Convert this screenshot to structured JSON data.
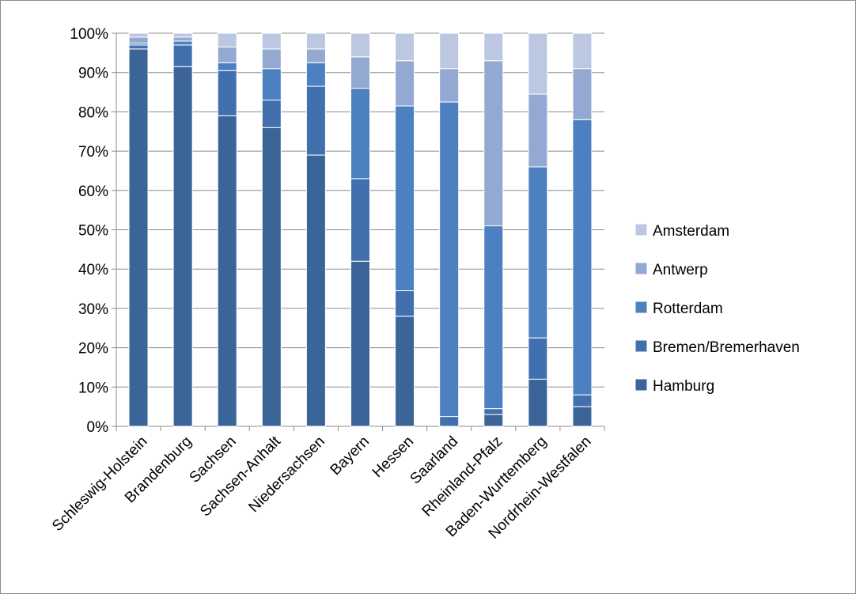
{
  "chart_data": {
    "type": "bar",
    "stacked": true,
    "percent_stacked": true,
    "categories": [
      "Schleswig-Holstein",
      "Brandenburg",
      "Sachsen",
      "Sachsen-Anhalt",
      "Niedersachsen",
      "Bayern",
      "Hessen",
      "Saarland",
      "Rheinland-Pfalz",
      "Baden-Wurttemberg",
      "Nordrhein-Westfalen"
    ],
    "series": [
      {
        "name": "Hamburg",
        "color": "#3b6498",
        "values": [
          96,
          91.5,
          79,
          76,
          69,
          42,
          28,
          0,
          3,
          12,
          5
        ]
      },
      {
        "name": "Bremen/Bremerhaven",
        "color": "#4270ae",
        "values": [
          1,
          5.5,
          11.5,
          7,
          17.5,
          21,
          6.5,
          2.5,
          1.5,
          10.5,
          3
        ]
      },
      {
        "name": "Rotterdam",
        "color": "#4c80c0",
        "values": [
          0.5,
          1,
          2,
          8,
          6,
          23,
          47,
          80,
          46.5,
          43.5,
          70
        ]
      },
      {
        "name": "Antwerp",
        "color": "#93a9d1",
        "values": [
          1.5,
          1,
          4,
          5,
          3.5,
          8,
          11.5,
          8.5,
          42,
          18.5,
          13
        ]
      },
      {
        "name": "Amsterdam",
        "color": "#bcc8e2",
        "values": [
          1,
          1,
          3.5,
          4,
          4,
          6,
          7,
          9,
          7,
          15.5,
          9
        ]
      }
    ],
    "yticks": [
      "0%",
      "10%",
      "20%",
      "30%",
      "40%",
      "50%",
      "60%",
      "70%",
      "80%",
      "90%",
      "100%"
    ],
    "ylim": [
      0,
      100
    ],
    "grid": true,
    "legend": {
      "placement": "right",
      "entries": [
        "Amsterdam",
        "Antwerp",
        "Rotterdam",
        "Bremen/Bremerhaven",
        "Hamburg"
      ]
    },
    "title": "",
    "xlabel": "",
    "ylabel": ""
  }
}
